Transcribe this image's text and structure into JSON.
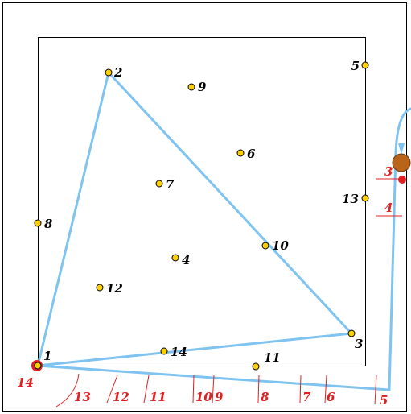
{
  "diagram": {
    "points": [
      {
        "id": "1",
        "label": "1"
      },
      {
        "id": "2",
        "label": "2"
      },
      {
        "id": "3",
        "label": "3"
      },
      {
        "id": "4",
        "label": "4"
      },
      {
        "id": "5",
        "label": "5"
      },
      {
        "id": "6",
        "label": "6"
      },
      {
        "id": "7",
        "label": "7"
      },
      {
        "id": "8",
        "label": "8"
      },
      {
        "id": "9",
        "label": "9"
      },
      {
        "id": "10",
        "label": "10"
      },
      {
        "id": "11",
        "label": "11"
      },
      {
        "id": "12",
        "label": "12"
      },
      {
        "id": "13",
        "label": "13"
      },
      {
        "id": "14",
        "label": "14"
      }
    ],
    "triangle": [
      "1",
      "2",
      "3"
    ],
    "tick_labels": [
      {
        "id": "t14",
        "label": "14"
      },
      {
        "id": "t13",
        "label": "13"
      },
      {
        "id": "t12",
        "label": "12"
      },
      {
        "id": "t11",
        "label": "11"
      },
      {
        "id": "t10",
        "label": "10"
      },
      {
        "id": "t9",
        "label": "9"
      },
      {
        "id": "t8",
        "label": "8"
      },
      {
        "id": "t7",
        "label": "7"
      },
      {
        "id": "t6",
        "label": "6"
      },
      {
        "id": "t5",
        "label": "5"
      },
      {
        "id": "t4",
        "label": "4"
      },
      {
        "id": "t3",
        "label": "3"
      }
    ],
    "colors": {
      "point_fill": "#ffd000",
      "point_stroke": "#000000",
      "edge": "#7fc3f0",
      "marker_red": "#e02020",
      "marker_brown": "#b8651b",
      "frame": "#000000",
      "label_black": "#000000",
      "label_red": "#e02020"
    }
  }
}
